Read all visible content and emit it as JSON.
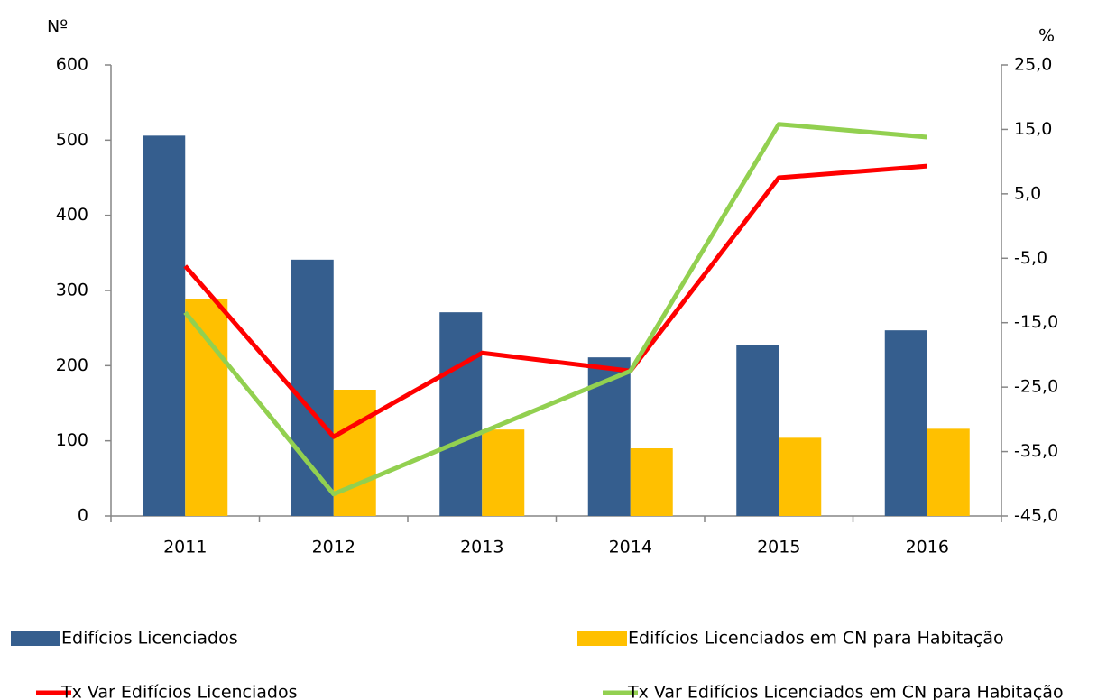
{
  "chart_data": {
    "type": "bar_line",
    "y_label": "Nº",
    "y2_label": "%",
    "categories": [
      "2011",
      "2012",
      "2013",
      "2014",
      "2015",
      "2016"
    ],
    "series": [
      {
        "name": "Edifícios Licenciados",
        "type": "bar",
        "color": "#355e8e",
        "values": [
          506,
          341,
          271,
          211,
          227,
          247
        ]
      },
      {
        "name": "Edifícios Licenciados em CN para Habitação",
        "type": "bar",
        "color": "#ffc000",
        "values": [
          288,
          168,
          115,
          90,
          104,
          116
        ]
      },
      {
        "name": "Tx Var Edifícios Licenciados",
        "type": "line",
        "axis": "y2",
        "color": "#ff0000",
        "values": [
          -6.2,
          -32.7,
          -19.7,
          -22.5,
          7.5,
          9.3
        ]
      },
      {
        "name": "Tx Var Edifícios Licenciados em CN para Habitação",
        "type": "line",
        "axis": "y2",
        "color": "#92d050",
        "values": [
          -13.4,
          -41.6,
          -32,
          -22.5,
          15.8,
          13.8
        ]
      }
    ],
    "ylim": [
      0,
      600
    ],
    "yticks": [
      0,
      100,
      200,
      300,
      400,
      500,
      600
    ],
    "y2lim": [
      -45,
      25
    ],
    "y2ticks": [
      {
        "value": -45,
        "label": "-45,0"
      },
      {
        "value": -35,
        "label": "-35,0"
      },
      {
        "value": -25,
        "label": "-25,0"
      },
      {
        "value": -15,
        "label": "-15,0"
      },
      {
        "value": -5,
        "label": "-5,0"
      },
      {
        "value": 5,
        "label": "5,0"
      },
      {
        "value": 15,
        "label": "15,0"
      },
      {
        "value": 25,
        "label": "25,0"
      }
    ],
    "legend": "bottom"
  }
}
